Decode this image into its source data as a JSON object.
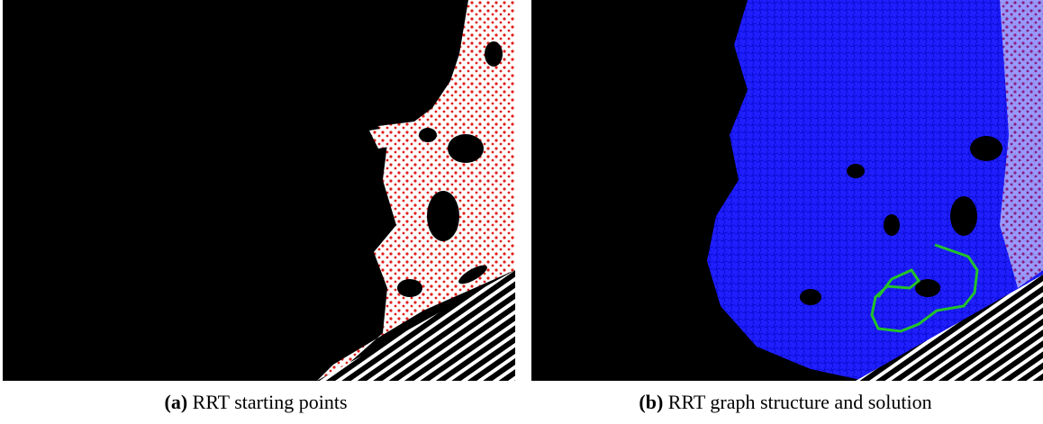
{
  "figures": [
    {
      "label": "(a)",
      "caption": "RRT starting points"
    },
    {
      "label": "(b)",
      "caption": "RRT graph structure and solution"
    }
  ]
}
